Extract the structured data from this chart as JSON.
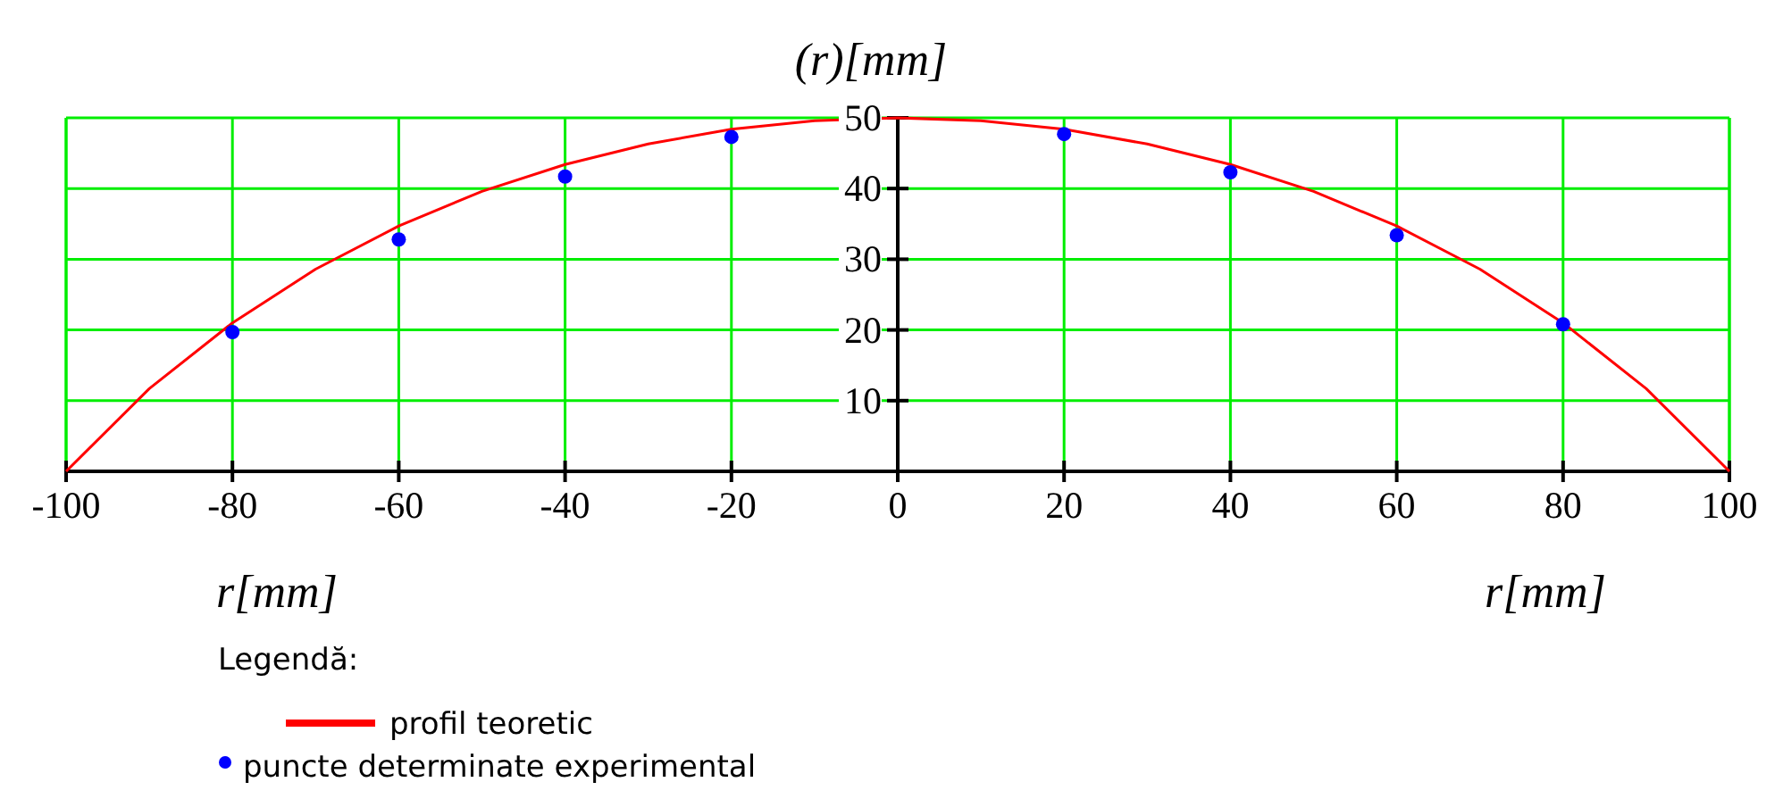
{
  "chart_data": {
    "type": "line",
    "ylabel": "(r)[mm]",
    "xlabel": "r[mm]",
    "annotations": [
      "r[mm]"
    ],
    "legend_title": "Legendă:",
    "legend": "bottom left",
    "grid": true,
    "xlim": [
      -100,
      100
    ],
    "ylim": [
      0,
      50
    ],
    "xticks": [
      -100,
      -80,
      -60,
      -40,
      -20,
      0,
      20,
      40,
      60,
      80,
      100
    ],
    "yticks": [
      {
        "value": 0,
        "label": null
      },
      10,
      20,
      30,
      40,
      50
    ],
    "series": [
      {
        "name": "profil teoretic",
        "type": "line",
        "color": "#ff0000",
        "marker": "none",
        "line_style": "solid",
        "x": [
          -100,
          -90,
          -80,
          -70,
          -60,
          -50,
          -40,
          -30,
          -20,
          -10,
          0,
          10,
          20,
          30,
          40,
          50,
          60,
          70,
          80,
          90,
          100
        ],
        "values": [
          0,
          11.7,
          21.0,
          28.6,
          34.7,
          39.6,
          43.4,
          46.3,
          48.4,
          49.6,
          50,
          49.6,
          48.4,
          46.3,
          43.4,
          39.6,
          34.7,
          28.6,
          21.0,
          11.7,
          0
        ]
      },
      {
        "name": "puncte determinate experimental",
        "type": "scatter",
        "color": "#0000ff",
        "marker": "circle",
        "x": [
          -80,
          -60,
          -40,
          -20,
          20,
          40,
          60,
          80
        ],
        "values": [
          19.7,
          32.8,
          41.7,
          47.3,
          47.7,
          42.3,
          33.4,
          20.8
        ]
      }
    ]
  }
}
